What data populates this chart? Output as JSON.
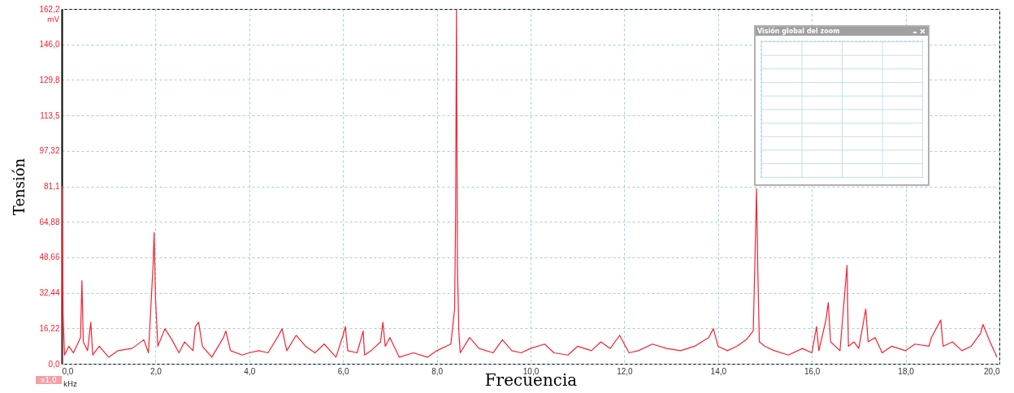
{
  "chart_data": {
    "type": "line",
    "xlabel": "Frecuencia",
    "ylabel": "Tensión",
    "annotations": [
      "mV",
      "kHz",
      "x1,0",
      "Visión global del zoom"
    ],
    "series": [
      {
        "color": "#f5222f",
        "x": [
          0,
          0.01,
          0.03,
          0.06,
          0.15,
          0.25,
          0.4,
          0.43,
          0.46,
          0.55,
          0.62,
          0.66,
          0.8,
          1.0,
          1.2,
          1.5,
          1.75,
          1.85,
          1.95,
          1.97,
          2.0,
          2.05,
          2.2,
          2.35,
          2.5,
          2.62,
          2.8,
          2.85,
          2.92,
          3.0,
          3.2,
          3.45,
          3.5,
          3.6,
          3.85,
          4.0,
          4.2,
          4.4,
          4.6,
          4.7,
          4.8,
          5.0,
          5.2,
          5.4,
          5.6,
          5.85,
          6.0,
          6.05,
          6.1,
          6.3,
          6.43,
          6.46,
          6.6,
          6.8,
          6.85,
          6.9,
          7.0,
          7.2,
          7.5,
          7.8,
          8.0,
          8.3,
          8.38,
          8.4,
          8.42,
          8.44,
          8.47,
          8.5,
          8.7,
          8.9,
          9.2,
          9.4,
          9.6,
          9.8,
          10.0,
          10.3,
          10.5,
          10.8,
          11.0,
          11.3,
          11.5,
          11.7,
          11.9,
          12.1,
          12.3,
          12.6,
          12.9,
          13.2,
          13.5,
          13.8,
          13.9,
          14.0,
          14.2,
          14.4,
          14.6,
          14.75,
          14.8,
          14.82,
          14.85,
          14.88,
          15.0,
          15.2,
          15.5,
          15.8,
          16.0,
          16.1,
          16.15,
          16.3,
          16.35,
          16.4,
          16.6,
          16.75,
          16.78,
          16.9,
          17.0,
          17.15,
          17.2,
          17.35,
          17.5,
          17.7,
          18.0,
          18.2,
          18.5,
          18.55,
          18.75,
          18.8,
          19.0,
          19.2,
          19.4,
          19.6,
          19.65,
          19.8,
          19.95
        ],
        "values": [
          0,
          81,
          22,
          4,
          8,
          5,
          12,
          38,
          10,
          6,
          19,
          4,
          8,
          3,
          6,
          7,
          11,
          5,
          46,
          60,
          30,
          8,
          16,
          11,
          5,
          10,
          6,
          17,
          19,
          8,
          3,
          12,
          15,
          6,
          4,
          5,
          6,
          5,
          12,
          16,
          6,
          13,
          8,
          5,
          9,
          3,
          13,
          17,
          6,
          5,
          15,
          4,
          6,
          10,
          19,
          8,
          12,
          3,
          5,
          3,
          6,
          9,
          25,
          65,
          162,
          45,
          15,
          5,
          12,
          7,
          5,
          11,
          6,
          5,
          7,
          9,
          5,
          4,
          8,
          6,
          10,
          7,
          13,
          5,
          6,
          9,
          7,
          6,
          8,
          12,
          16,
          8,
          6,
          8,
          11,
          15,
          60,
          80,
          40,
          10,
          8,
          6,
          4,
          7,
          5,
          17,
          6,
          20,
          28,
          10,
          6,
          45,
          8,
          10,
          7,
          25,
          10,
          12,
          5,
          8,
          6,
          9,
          8,
          12,
          20,
          8,
          10,
          6,
          8,
          14,
          18,
          10,
          3
        ]
      }
    ],
    "xlim": [
      0,
      20
    ],
    "xticks": [
      {
        "value": 0,
        "label": "0,0"
      },
      {
        "value": 2,
        "label": "2,0"
      },
      {
        "value": 4,
        "label": "4,0"
      },
      {
        "value": 6,
        "label": "6,0"
      },
      {
        "value": 8,
        "label": "8,0"
      },
      {
        "value": 10,
        "label": "10,0"
      },
      {
        "value": 12,
        "label": "12,0"
      },
      {
        "value": 14,
        "label": "14,0"
      },
      {
        "value": 16,
        "label": "16,0"
      },
      {
        "value": 18,
        "label": "18,0"
      },
      {
        "value": 20,
        "label": "20,0"
      }
    ],
    "ylim": [
      0,
      162.2
    ],
    "yticks": [
      {
        "value": 0,
        "label": "0,0"
      },
      {
        "value": 16.22,
        "label": "16,22"
      },
      {
        "value": 32.44,
        "label": "32,44"
      },
      {
        "value": 48.66,
        "label": "48,66"
      },
      {
        "value": 64.88,
        "label": "64,88"
      },
      {
        "value": 81.1,
        "label": "81,1"
      },
      {
        "value": 97.32,
        "label": "97,32"
      },
      {
        "value": 113.5,
        "label": "113,5"
      },
      {
        "value": 129.8,
        "label": "129,8"
      },
      {
        "value": 146.0,
        "label": "146,0"
      },
      {
        "value": 162.2,
        "label": "162,2"
      }
    ],
    "grid": true,
    "marker": "none",
    "line_style": "solid"
  }
}
